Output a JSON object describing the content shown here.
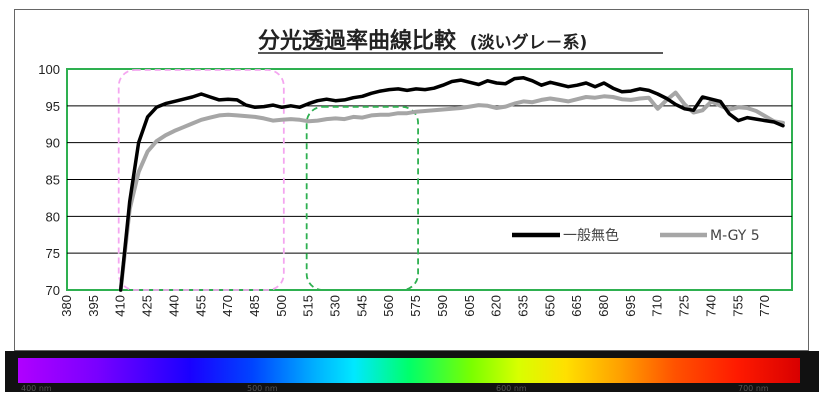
{
  "chart_data": {
    "type": "line",
    "title": "分光透過率曲線比較",
    "subtitle": "(淡いグレ－系)",
    "xlabel": "",
    "ylabel": "",
    "ylim": [
      70,
      100
    ],
    "yticks": [
      70,
      75,
      80,
      85,
      90,
      95,
      100
    ],
    "xlim": [
      380,
      785
    ],
    "xticks": [
      380,
      395,
      410,
      425,
      440,
      455,
      470,
      485,
      500,
      515,
      530,
      545,
      560,
      575,
      590,
      605,
      620,
      635,
      650,
      665,
      680,
      695,
      710,
      725,
      740,
      755,
      770
    ],
    "grid": true,
    "legend_position": "right-middle",
    "series": [
      {
        "name": "一般無色",
        "color": "#000000",
        "x": [
          410,
          415,
          420,
          425,
          430,
          435,
          440,
          445,
          450,
          455,
          460,
          465,
          470,
          475,
          480,
          485,
          490,
          495,
          500,
          505,
          510,
          515,
          520,
          525,
          530,
          535,
          540,
          545,
          550,
          555,
          560,
          565,
          570,
          575,
          580,
          585,
          590,
          595,
          600,
          605,
          610,
          615,
          620,
          625,
          630,
          635,
          640,
          645,
          650,
          655,
          660,
          665,
          670,
          675,
          680,
          685,
          690,
          695,
          700,
          705,
          710,
          715,
          720,
          725,
          730,
          735,
          740,
          745,
          750,
          755,
          760,
          765,
          770,
          775,
          780
        ],
        "values": [
          70,
          82,
          90,
          93.5,
          94.8,
          95.3,
          95.6,
          95.9,
          96.2,
          96.6,
          96.2,
          95.8,
          95.9,
          95.8,
          95.1,
          94.8,
          94.9,
          95.1,
          94.8,
          95.0,
          94.8,
          95.3,
          95.7,
          95.9,
          95.7,
          95.8,
          96.1,
          96.3,
          96.7,
          97.0,
          97.2,
          97.3,
          97.1,
          97.3,
          97.2,
          97.4,
          97.8,
          98.3,
          98.5,
          98.2,
          97.9,
          98.4,
          98.1,
          98.0,
          98.7,
          98.8,
          98.4,
          97.8,
          98.2,
          97.9,
          97.6,
          97.8,
          98.1,
          97.6,
          98.1,
          97.4,
          96.9,
          97.0,
          97.3,
          97.1,
          96.6,
          96.0,
          95.2,
          94.6,
          94.4,
          96.2,
          95.9,
          95.6,
          93.9,
          93.0,
          93.4,
          93.2,
          93.0,
          92.8,
          92.3
        ]
      },
      {
        "name": "M-GY 5",
        "color": "#a6a6a6",
        "x": [
          410,
          415,
          420,
          425,
          430,
          435,
          440,
          445,
          450,
          455,
          460,
          465,
          470,
          475,
          480,
          485,
          490,
          495,
          500,
          505,
          510,
          515,
          520,
          525,
          530,
          535,
          540,
          545,
          550,
          555,
          560,
          565,
          570,
          575,
          580,
          585,
          590,
          595,
          600,
          605,
          610,
          615,
          620,
          625,
          630,
          635,
          640,
          645,
          650,
          655,
          660,
          665,
          670,
          675,
          680,
          685,
          690,
          695,
          700,
          705,
          710,
          715,
          720,
          725,
          730,
          735,
          740,
          745,
          750,
          755,
          760,
          765,
          770,
          775,
          780
        ],
        "values": [
          70,
          81,
          86,
          88.8,
          90.2,
          91.0,
          91.6,
          92.1,
          92.6,
          93.1,
          93.4,
          93.7,
          93.8,
          93.7,
          93.6,
          93.5,
          93.3,
          93.0,
          93.1,
          93.2,
          93.1,
          92.9,
          93.0,
          93.2,
          93.3,
          93.2,
          93.5,
          93.4,
          93.7,
          93.8,
          93.8,
          94.0,
          94.0,
          94.2,
          94.3,
          94.4,
          94.5,
          94.6,
          94.7,
          94.9,
          95.1,
          95.0,
          94.7,
          94.9,
          95.3,
          95.6,
          95.5,
          95.8,
          96.0,
          95.8,
          95.6,
          95.9,
          96.2,
          96.1,
          96.3,
          96.2,
          95.9,
          95.8,
          96.0,
          96.1,
          94.6,
          95.8,
          96.8,
          95.2,
          94.1,
          94.4,
          95.6,
          95.0,
          94.5,
          94.8,
          94.7,
          94.3,
          93.6,
          92.9,
          92.7
        ]
      }
    ],
    "annotations": [
      {
        "name": "uv-region",
        "x_range": [
          410,
          500
        ],
        "y_range": [
          70,
          100
        ],
        "color": "#f4a6f0",
        "style": "dashed"
      },
      {
        "name": "visible-region",
        "x_range": [
          515,
          575
        ],
        "y_range": [
          70,
          95
        ],
        "color": "#2eb050",
        "style": "dashed"
      }
    ],
    "spectrum_bar": {
      "labels": [
        "400 nm",
        "500 nm",
        "600 nm",
        "700 nm"
      ]
    }
  }
}
